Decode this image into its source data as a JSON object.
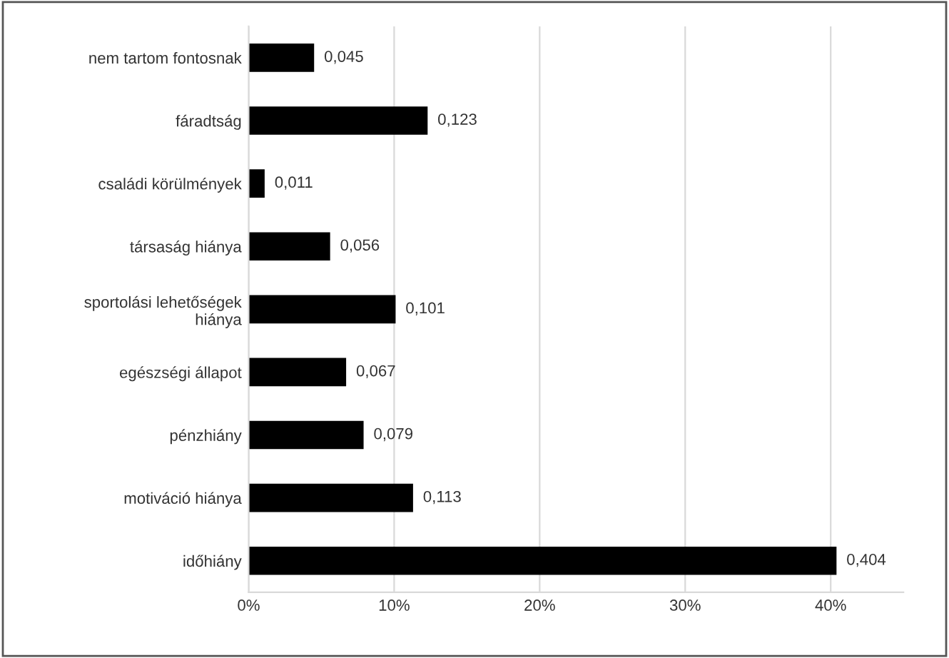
{
  "chart_data": {
    "type": "bar",
    "orientation": "horizontal",
    "categories": [
      "nem tartom fontosnak",
      "fáradtság",
      "családi körülmények",
      "társaság hiánya",
      "sportolási lehetőségek hiánya",
      "egészségi állapot",
      "pénzhiány",
      "motiváció hiánya",
      "időhiány"
    ],
    "values": [
      0.045,
      0.123,
      0.011,
      0.056,
      0.101,
      0.067,
      0.079,
      0.113,
      0.404
    ],
    "value_labels": [
      "0,045",
      "0,123",
      "0,011",
      "0,056",
      "0,101",
      "0,067",
      "0,079",
      "0,113",
      "0,404"
    ],
    "color": "#000000",
    "xlim": [
      0,
      0.45
    ],
    "xticks": [
      {
        "value": 0,
        "label": "0%"
      },
      {
        "value": 0.1,
        "label": "10%"
      },
      {
        "value": 0.2,
        "label": "20%"
      },
      {
        "value": 0.3,
        "label": "30%"
      },
      {
        "value": 0.4,
        "label": "40%"
      }
    ],
    "grid": "x",
    "legend": false
  }
}
